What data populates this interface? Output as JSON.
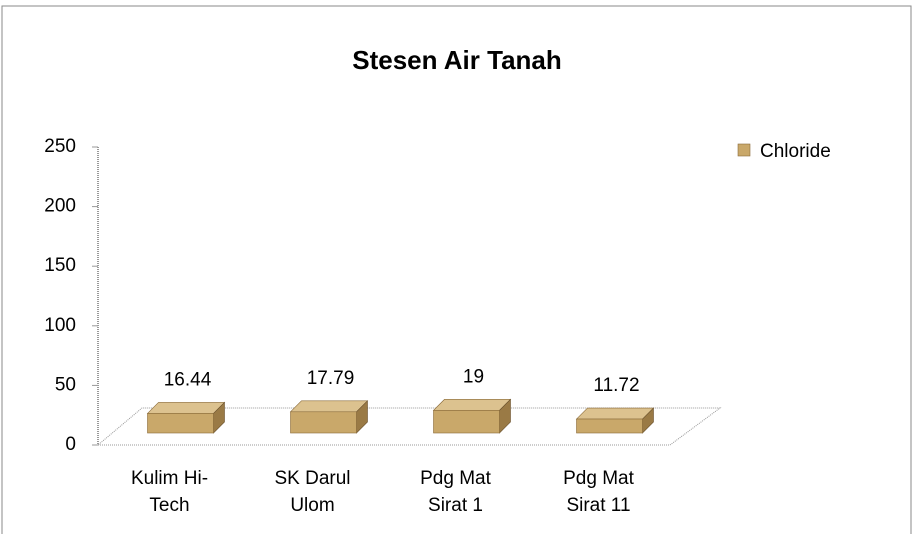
{
  "chart_data": {
    "type": "bar",
    "title": "Stesen Air Tanah",
    "categories": [
      "Kulim Hi-Tech",
      "SK Darul Ulom",
      "Pdg Mat Sirat 1",
      "Pdg Mat Sirat 11"
    ],
    "series": [
      {
        "name": "Chloride",
        "color": "#c9a86a",
        "values": [
          16.44,
          17.79,
          19,
          11.72
        ]
      }
    ],
    "ylim": [
      0,
      250
    ],
    "yticks": [
      0,
      50,
      100,
      150,
      200,
      250
    ],
    "legend": "right"
  }
}
